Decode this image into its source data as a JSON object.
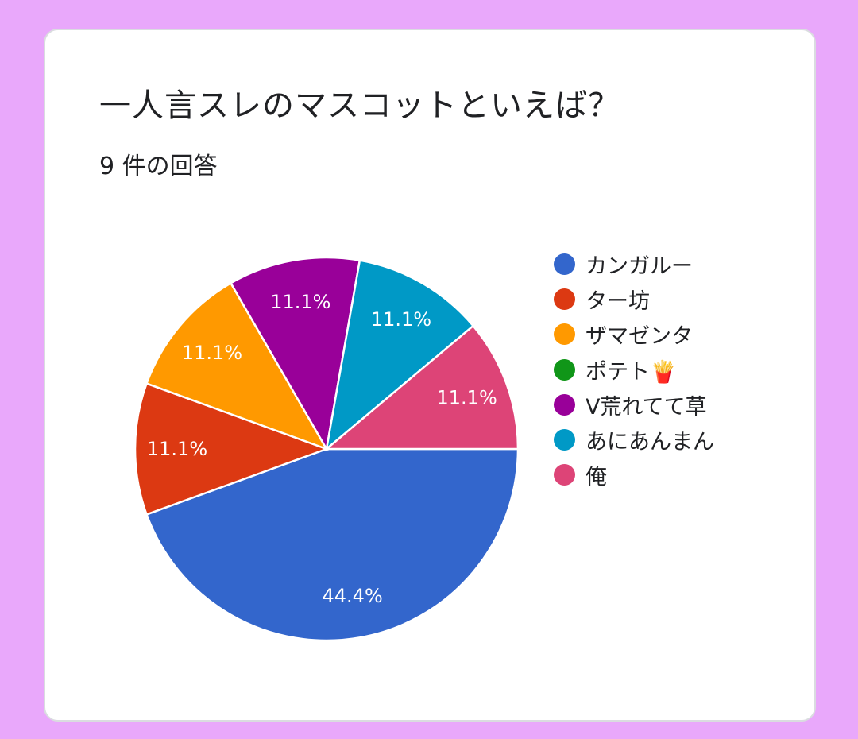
{
  "chart_data": {
    "type": "pie",
    "title": "一人言スレのマスコットといえば？",
    "subtitle": "9 件の回答",
    "categories": [
      "カンガルー",
      "ター坊",
      "ザマゼンタ",
      "ポテト🍟",
      "V荒れてて草",
      "あにあんまん",
      "俺"
    ],
    "values": [
      4,
      1,
      1,
      0,
      1,
      1,
      1
    ],
    "percent_labels": [
      "44.4%",
      "11.1%",
      "11.1%",
      "",
      "11.1%",
      "11.1%",
      "11.1%"
    ],
    "colors": [
      "#3366cc",
      "#dc3912",
      "#ff9900",
      "#109618",
      "#990099",
      "#0099c6",
      "#dd4477"
    ],
    "legend_position": "right"
  }
}
